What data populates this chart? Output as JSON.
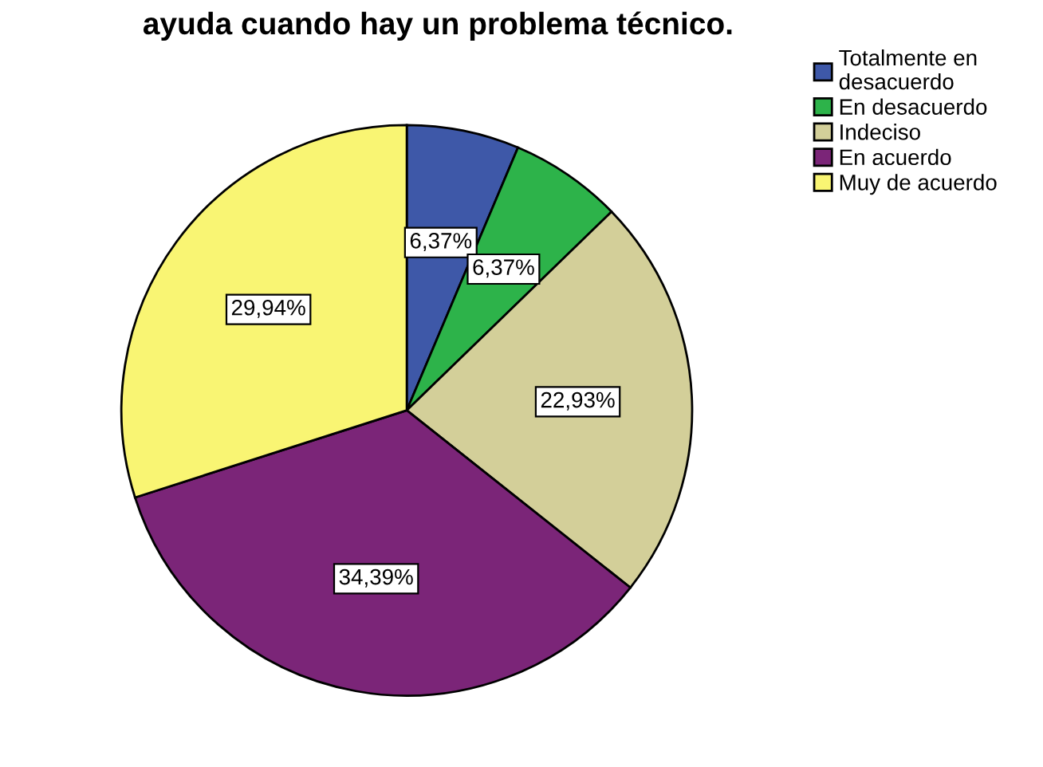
{
  "chart_data": {
    "type": "pie",
    "title": "ayuda cuando hay un problema técnico.",
    "categories": [
      "Totalmente en\ndesacuerdo",
      "En desacuerdo",
      "Indeciso",
      "En acuerdo",
      "Muy de acuerdo"
    ],
    "values": [
      6.37,
      6.37,
      22.93,
      34.39,
      29.94
    ],
    "value_labels": [
      "6,37%",
      "6,37%",
      "22,93%",
      "34,39%",
      "29,94%"
    ],
    "colors": [
      "#3e58a8",
      "#2db34a",
      "#d3cf99",
      "#7b2578",
      "#f9f573"
    ],
    "legend": "top right"
  }
}
